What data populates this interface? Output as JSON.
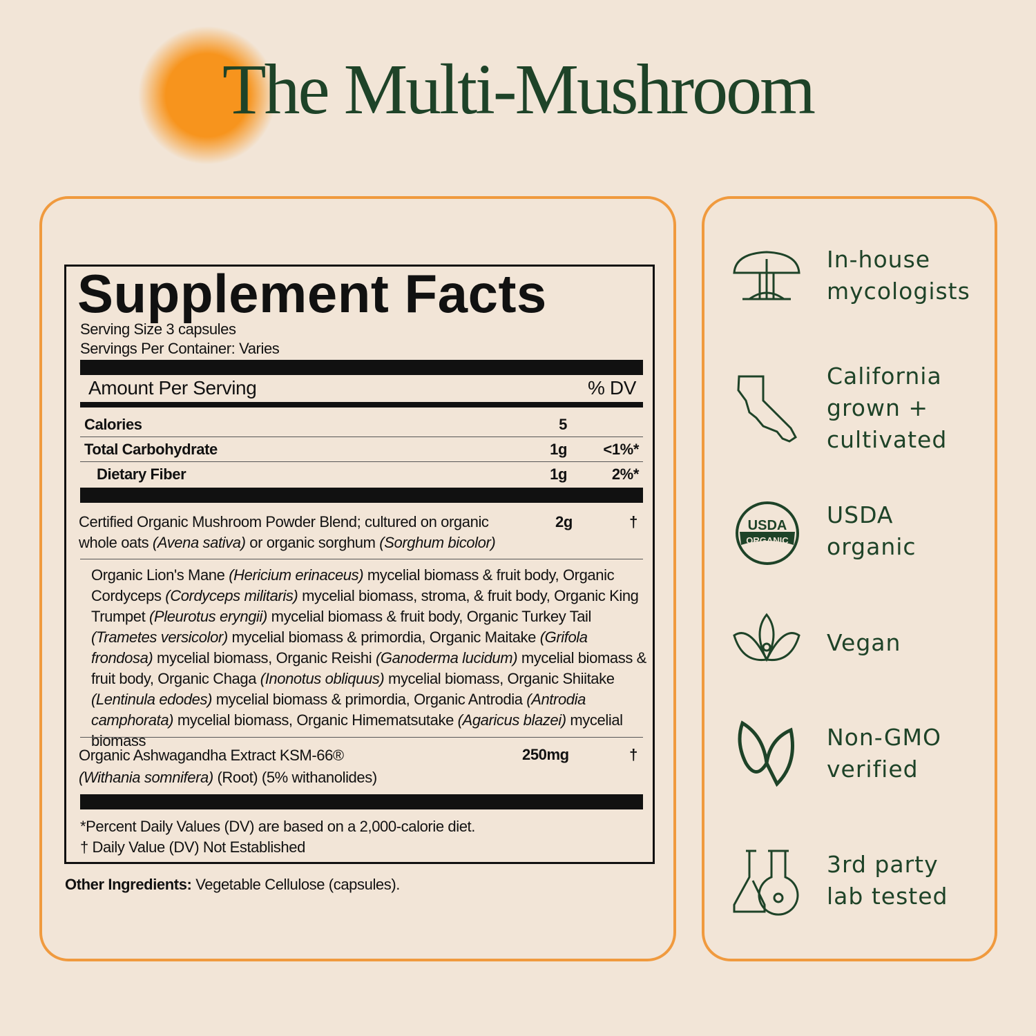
{
  "header": {
    "title": "The Multi-Mushroom"
  },
  "facts": {
    "title": "Supplement Facts",
    "serving_size": "Serving Size 3 capsules",
    "servings_per_container": "Servings Per Container: Varies",
    "amount_header": "Amount Per Serving",
    "dv_header": "% DV",
    "rows": [
      {
        "name": "Calories",
        "amount": "5"
      },
      {
        "name": "Total Carbohydrate",
        "amount": "1g",
        "dv": "<1%*"
      },
      {
        "name": "Dietary Fiber",
        "amount": "1g",
        "dv": "2%*"
      }
    ],
    "blend": {
      "text": [
        "Certified Organic Mushroom Powder Blend; cultured on organic whole oats ",
        "(Avena sativa)",
        " or organic sorghum ",
        "(Sorghum bicolor)"
      ],
      "amount": "2g",
      "dv": "†"
    },
    "blend_ingredients": [
      "Organic Lion's Mane ",
      "(Hericium erinaceus)",
      " mycelial biomass & fruit body, Organic Cordyceps ",
      "(Cordyceps militaris)",
      " mycelial biomass, stroma, & fruit body, Organic King Trumpet ",
      "(Pleurotus eryngii)",
      " mycelial biomass & fruit body, Organic Turkey Tail ",
      "(Trametes versicolor)",
      " mycelial biomass & primordia, Organic Maitake ",
      "(Grifola frondosa)",
      " mycelial biomass, Organic Reishi ",
      "(Ganoderma lucidum)",
      " mycelial biomass & fruit body, Organic Chaga ",
      "(Inonotus obliquus)",
      " mycelial biomass, Organic Shiitake ",
      "(Lentinula edodes)",
      " mycelial biomass & primordia, Organic Antrodia ",
      "(Antrodia camphorata)",
      " mycelial biomass, Organic Himematsutake ",
      "(Agaricus blazei)",
      " mycelial biomass"
    ],
    "ashwagandha": {
      "text": [
        "Organic Ashwagandha Extract KSM-66®",
        "(Withania somnifera)",
        " (Root) (5% withanolides)"
      ],
      "amount": "250mg",
      "dv": "†"
    },
    "footnotes": [
      "*Percent Daily Values (DV) are based on a 2,000-calorie diet.",
      "† Daily Value (DV) Not Established"
    ]
  },
  "other_ingredients": {
    "label": "Other Ingredients:",
    "text": "Vegetable Cellulose (capsules)."
  },
  "usda_badge": {
    "top": "USDA",
    "bottom": "ORGANIC"
  },
  "features": [
    "In-house mycologists",
    "California grown + cultivated",
    "USDA organic",
    "Vegan",
    "Non-GMO verified",
    "3rd party lab tested"
  ]
}
